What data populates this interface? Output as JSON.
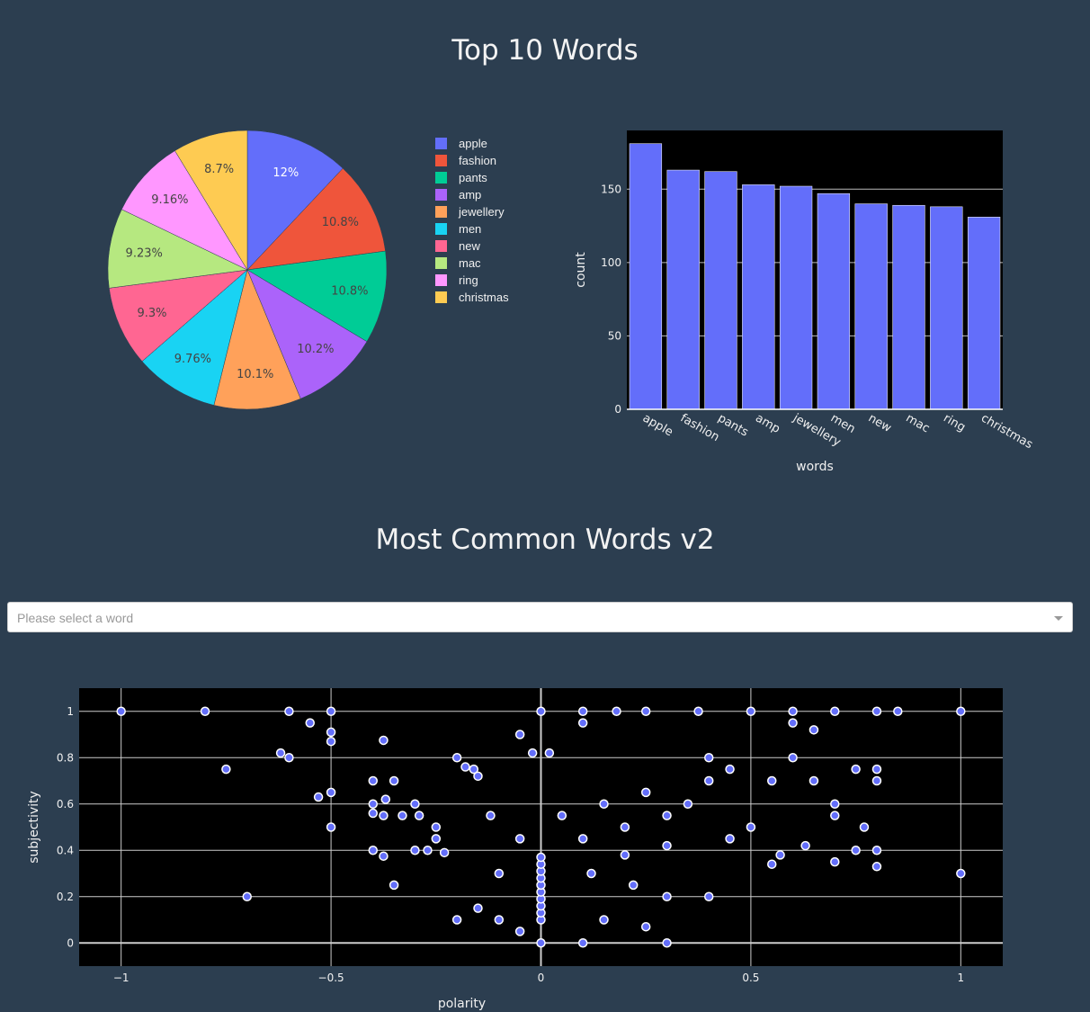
{
  "titles": {
    "top_words": "Top 10 Words",
    "common_words": "Most Common Words v2"
  },
  "dropdown": {
    "placeholder": "Please select a word"
  },
  "chart_data": [
    {
      "type": "pie",
      "labels": [
        "apple",
        "fashion",
        "pants",
        "amp",
        "jewellery",
        "men",
        "new",
        "mac",
        "ring",
        "christmas"
      ],
      "values": [
        181,
        163,
        162,
        153,
        152,
        147,
        140,
        139,
        138,
        131
      ],
      "percent_labels": [
        "12%",
        "10.8%",
        "10.8%",
        "10.2%",
        "10.1%",
        "9.76%",
        "9.3%",
        "9.23%",
        "9.16%",
        "8.7%"
      ],
      "colors": [
        "#636efa",
        "#EF553B",
        "#00cc96",
        "#ab63fa",
        "#FFA15A",
        "#19d3f3",
        "#FF6692",
        "#B6E880",
        "#FF97FF",
        "#FECB52"
      ],
      "legend_position": "right"
    },
    {
      "type": "bar",
      "categories": [
        "apple",
        "fashion",
        "pants",
        "amp",
        "jewellery",
        "men",
        "new",
        "mac",
        "ring",
        "christmas"
      ],
      "values": [
        181,
        163,
        162,
        153,
        152,
        147,
        140,
        139,
        138,
        131
      ],
      "xlabel": "words",
      "ylabel": "count",
      "ylim": [
        0,
        190
      ],
      "yticks": [
        0,
        50,
        100,
        150
      ],
      "color": "#636efa",
      "grid": true
    },
    {
      "type": "scatter",
      "xlabel": "polarity",
      "ylabel": "subjectivity",
      "xlim": [
        -1.1,
        1.1
      ],
      "ylim": [
        -0.1,
        1.1
      ],
      "xticks": [
        -1,
        -0.5,
        0,
        0.5,
        1
      ],
      "xtick_labels": [
        "−1",
        "−0.5",
        "0",
        "0.5",
        "1"
      ],
      "yticks": [
        0,
        0.2,
        0.4,
        0.6,
        0.8,
        1
      ],
      "ytick_labels": [
        "0",
        "0.2",
        "0.4",
        "0.6",
        "0.8",
        "1"
      ],
      "color": "#636efa",
      "grid": true,
      "points": [
        [
          -1,
          1
        ],
        [
          -0.8,
          1
        ],
        [
          -0.6,
          1
        ],
        [
          -0.5,
          1
        ],
        [
          -0.55,
          0.95
        ],
        [
          -0.5,
          0.91
        ],
        [
          -0.5,
          0.87
        ],
        [
          -0.62,
          0.82
        ],
        [
          -0.6,
          0.8
        ],
        [
          -0.75,
          0.75
        ],
        [
          -0.5,
          0.65
        ],
        [
          -0.53,
          0.63
        ],
        [
          -0.5,
          0.5
        ],
        [
          -0.7,
          0.2
        ],
        [
          -0.375,
          0.875
        ],
        [
          -0.4,
          0.7
        ],
        [
          -0.35,
          0.7
        ],
        [
          -0.4,
          0.6
        ],
        [
          -0.37,
          0.62
        ],
        [
          -0.4,
          0.56
        ],
        [
          -0.375,
          0.55
        ],
        [
          -0.33,
          0.55
        ],
        [
          -0.4,
          0.4
        ],
        [
          -0.375,
          0.375
        ],
        [
          -0.35,
          0.25
        ],
        [
          -0.3,
          0.6
        ],
        [
          -0.29,
          0.55
        ],
        [
          -0.3,
          0.4
        ],
        [
          -0.27,
          0.4
        ],
        [
          -0.25,
          0.5
        ],
        [
          -0.25,
          0.45
        ],
        [
          -0.23,
          0.39
        ],
        [
          -0.2,
          0.8
        ],
        [
          -0.18,
          0.76
        ],
        [
          -0.16,
          0.75
        ],
        [
          -0.15,
          0.72
        ],
        [
          -0.2,
          0.1
        ],
        [
          -0.15,
          0.15
        ],
        [
          -0.1,
          0.1
        ],
        [
          -0.05,
          0.05
        ],
        [
          -0.05,
          0.9
        ],
        [
          0,
          1
        ],
        [
          -0.02,
          0.82
        ],
        [
          0.02,
          0.82
        ],
        [
          0.1,
          1
        ],
        [
          0.1,
          0.95
        ],
        [
          0.18,
          1
        ],
        [
          0.25,
          1
        ],
        [
          0.375,
          1
        ],
        [
          0.5,
          1
        ],
        [
          0.6,
          1
        ],
        [
          0.7,
          1
        ],
        [
          0.8,
          1
        ],
        [
          0.85,
          1
        ],
        [
          1,
          1
        ],
        [
          0.6,
          0.95
        ],
        [
          0.65,
          0.92
        ],
        [
          0.75,
          0.75
        ],
        [
          0.8,
          0.75
        ],
        [
          0.8,
          0.7
        ],
        [
          0.7,
          0.6
        ],
        [
          0.7,
          0.55
        ],
        [
          0.77,
          0.5
        ],
        [
          0.75,
          0.4
        ],
        [
          0.8,
          0.4
        ],
        [
          0.8,
          0.33
        ],
        [
          0.7,
          0.35
        ],
        [
          0.63,
          0.42
        ],
        [
          0.57,
          0.38
        ],
        [
          0.55,
          0.34
        ],
        [
          1,
          0.3
        ],
        [
          0.3,
          0
        ],
        [
          0.1,
          0
        ],
        [
          0,
          0
        ],
        [
          0.25,
          0.07
        ],
        [
          0.15,
          0.1
        ],
        [
          0.4,
          0.2
        ],
        [
          0.3,
          0.2
        ],
        [
          0.5,
          0.5
        ],
        [
          0.45,
          0.45
        ],
        [
          0,
          0.1
        ],
        [
          0,
          0.13
        ],
        [
          0,
          0.16
        ],
        [
          0,
          0.19
        ],
        [
          0,
          0.22
        ],
        [
          0,
          0.25
        ],
        [
          0,
          0.28
        ],
        [
          0,
          0.31
        ],
        [
          0,
          0.34
        ],
        [
          0,
          0.37
        ],
        [
          0.1,
          0.45
        ],
        [
          0.2,
          0.5
        ],
        [
          0.3,
          0.55
        ],
        [
          0.35,
          0.6
        ],
        [
          0.25,
          0.65
        ],
        [
          0.15,
          0.6
        ],
        [
          0.05,
          0.55
        ],
        [
          -0.05,
          0.45
        ],
        [
          0.2,
          0.38
        ],
        [
          0.3,
          0.42
        ],
        [
          0.4,
          0.7
        ],
        [
          0.45,
          0.75
        ],
        [
          0.4,
          0.8
        ],
        [
          0.55,
          0.7
        ],
        [
          0.6,
          0.8
        ],
        [
          0.65,
          0.7
        ],
        [
          0.12,
          0.3
        ],
        [
          0.22,
          0.25
        ],
        [
          -0.1,
          0.3
        ],
        [
          -0.12,
          0.55
        ]
      ]
    }
  ]
}
